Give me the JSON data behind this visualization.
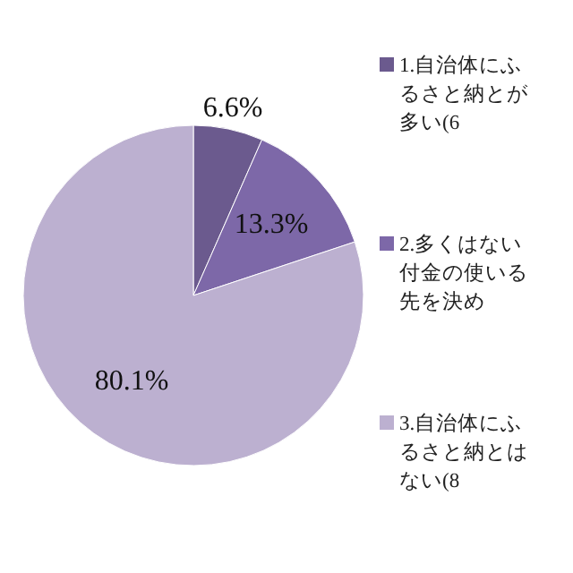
{
  "chart_data": {
    "type": "pie",
    "categories": [
      "1.自治体にふるさと納とが多い(6",
      "2.多くはない付金の使いる先を決め",
      "3.自治体にふるさと納とはない(8"
    ],
    "values": [
      6.6,
      13.3,
      80.1
    ],
    "colors": [
      "#6b5a8e",
      "#7d68a8",
      "#bcb0d0"
    ],
    "value_labels": [
      "6.6%",
      "13.3%",
      "80.1%"
    ],
    "legend": "right"
  }
}
